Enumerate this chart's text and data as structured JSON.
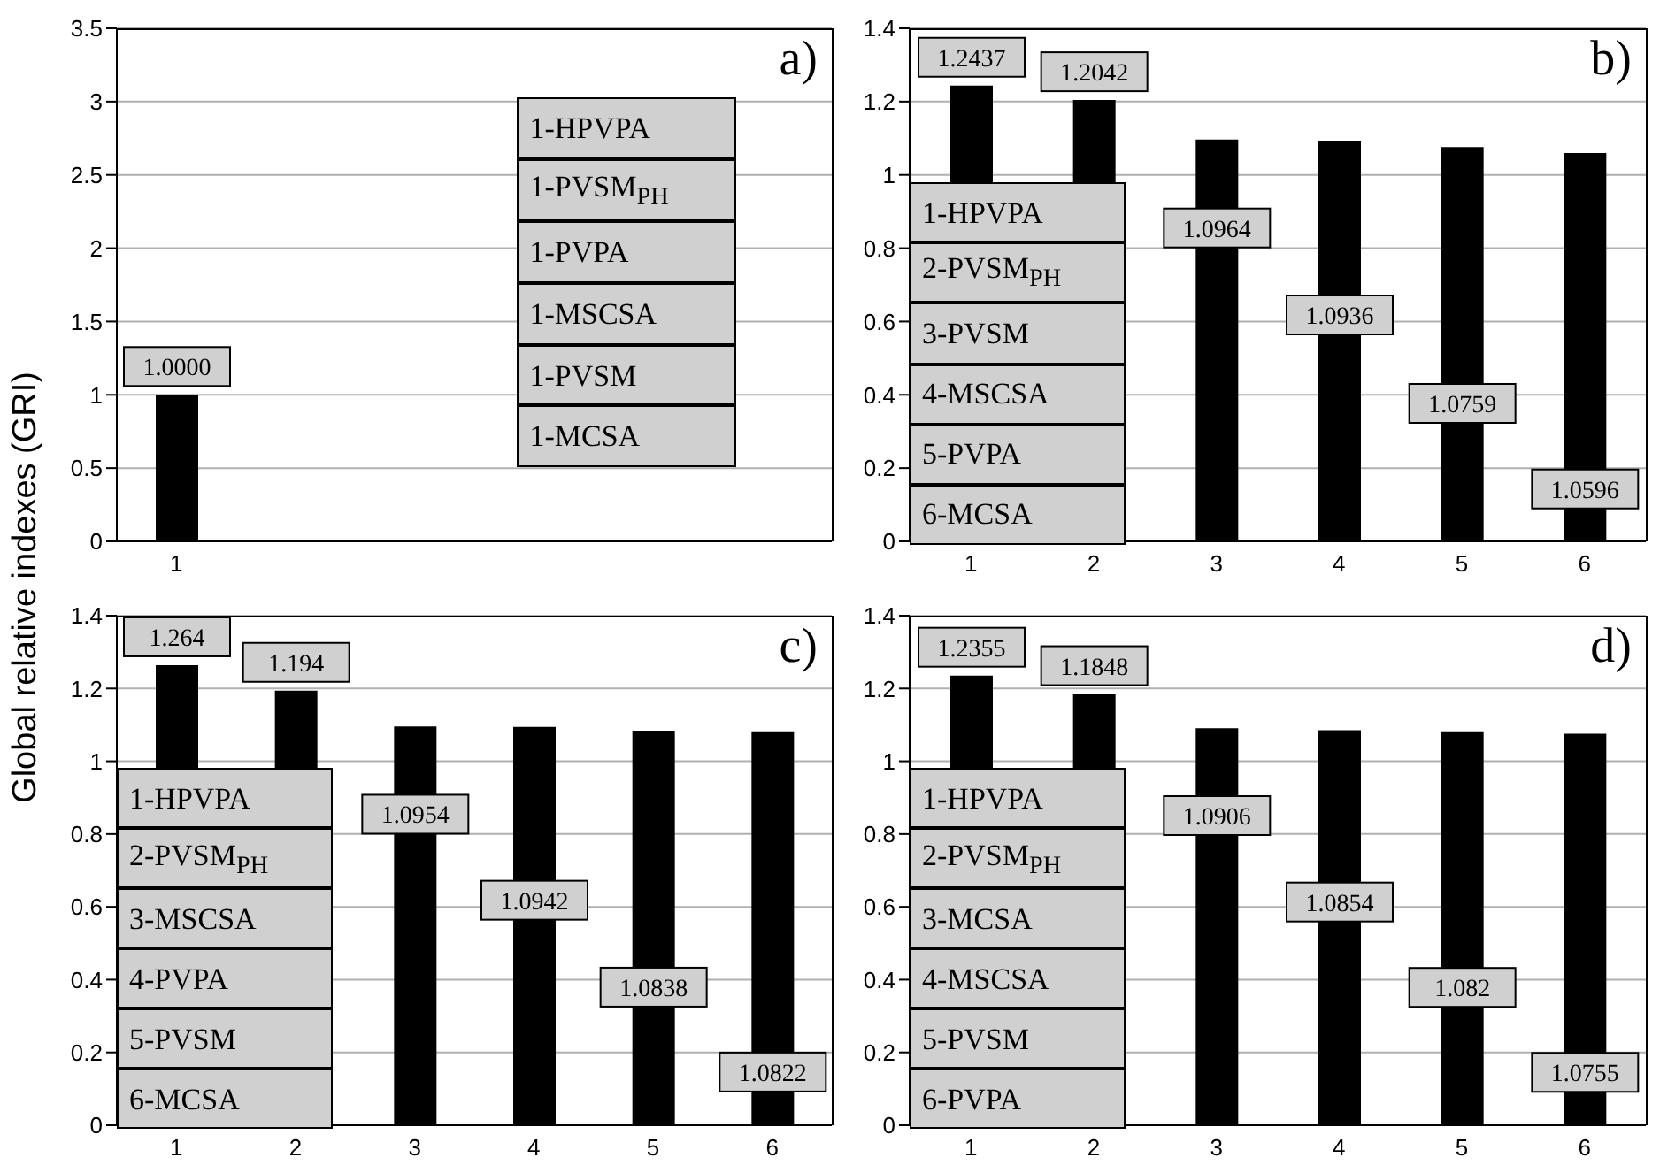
{
  "chart_data": [
    {
      "type": "bar",
      "title": "a)",
      "ylabel": "Global relative indexes (GRI)",
      "categories": [
        "1",
        null,
        null,
        null,
        null,
        null
      ],
      "values": [
        1.0,
        null,
        null,
        null,
        null,
        null
      ],
      "color": "#000000",
      "ylim": [
        0,
        3.5
      ],
      "yticks": [
        0,
        0.5,
        1,
        1.5,
        2,
        2.5,
        3,
        3.5
      ],
      "grid": "y",
      "value_labels": [
        "1.0000",
        null,
        null,
        null,
        null,
        null
      ],
      "annotations": [
        "1-HPVPA",
        "1-PVSM$_{PH}$",
        "1-PVPA",
        "1-MSCSA",
        "1-PVSM",
        "1-MCSA"
      ]
    },
    {
      "type": "bar",
      "title": "b)",
      "categories": [
        "1",
        "2",
        "3",
        "4",
        "5",
        "6"
      ],
      "values": [
        1.2437,
        1.2042,
        1.0964,
        1.0936,
        1.0759,
        1.0596
      ],
      "color": "#000000",
      "ylim": [
        0,
        1.4
      ],
      "yticks": [
        0,
        0.2,
        0.4,
        0.6,
        0.8,
        1,
        1.2,
        1.4
      ],
      "grid": "y",
      "value_labels": [
        "1.2437",
        "1.2042",
        "1.0964",
        "1.0936",
        "1.0759",
        "1.0596"
      ],
      "annotations": [
        "1-HPVPA",
        "2-PVSM$_{PH}$",
        "3-PVSM",
        "4-MSCSA",
        "5-PVPA",
        "6-MCSA"
      ]
    },
    {
      "type": "bar",
      "title": "c)",
      "categories": [
        "1",
        "2",
        "3",
        "4",
        "5",
        "6"
      ],
      "values": [
        1.264,
        1.194,
        1.0954,
        1.0942,
        1.0838,
        1.0822
      ],
      "color": "#000000",
      "ylim": [
        0,
        1.4
      ],
      "yticks": [
        0,
        0.2,
        0.4,
        0.6,
        0.8,
        1,
        1.2,
        1.4
      ],
      "grid": "y",
      "value_labels": [
        "1.264",
        "1.194",
        "1.0954",
        "1.0942",
        "1.0838",
        "1.0822"
      ],
      "annotations": [
        "1-HPVPA",
        "2-PVSM$_{PH}$",
        "3-MSCSA",
        "4-PVPA",
        "5-PVSM",
        "6-MCSA"
      ]
    },
    {
      "type": "bar",
      "title": "d)",
      "categories": [
        "1",
        "2",
        "3",
        "4",
        "5",
        "6"
      ],
      "values": [
        1.2355,
        1.1848,
        1.0906,
        1.0854,
        1.082,
        1.0755
      ],
      "color": "#000000",
      "ylim": [
        0,
        1.4
      ],
      "yticks": [
        0,
        0.2,
        0.4,
        0.6,
        0.8,
        1,
        1.2,
        1.4
      ],
      "grid": "y",
      "value_labels": [
        "1.2355",
        "1.1848",
        "1.0906",
        "1.0854",
        "1.082",
        "1.0755"
      ],
      "annotations": [
        "1-HPVPA",
        "2-PVSM$_{PH}$",
        "3-MCSA",
        "4-MSCSA",
        "5-PVSM",
        "6-PVPA"
      ]
    }
  ]
}
